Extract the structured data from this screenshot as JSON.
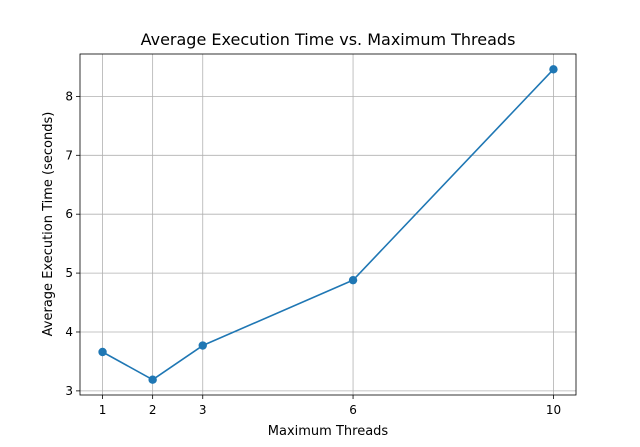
{
  "chart_data": {
    "type": "line",
    "title": "Average Execution Time vs. Maximum Threads",
    "xlabel": "Maximum Threads",
    "ylabel": "Average Execution Time (seconds)",
    "x": [
      1,
      2,
      3,
      6,
      10
    ],
    "series": [
      {
        "values": [
          3.66,
          3.19,
          3.77,
          4.88,
          8.46
        ],
        "color": "#1f77b4",
        "marker": "circle"
      }
    ],
    "xticks": [
      1,
      2,
      3,
      6,
      10
    ],
    "yticks": [
      3,
      4,
      5,
      6,
      7,
      8
    ],
    "xlim": [
      0.55,
      10.45
    ],
    "ylim": [
      2.93,
      8.72
    ],
    "grid": true,
    "legend": "none"
  }
}
